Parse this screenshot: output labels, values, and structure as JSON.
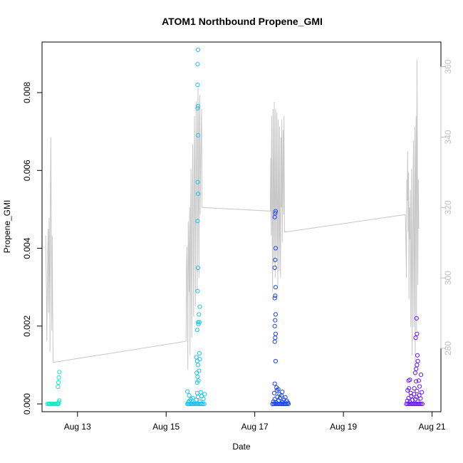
{
  "chart_data": {
    "type": "scatter",
    "title": "ATOM1 Northbound Propene_GMI",
    "xlabel": "Date",
    "ylabel": "Propene_GMI",
    "y2label": "",
    "x_range_days": [
      12.2,
      21.2
    ],
    "ylim": [
      -0.0002,
      0.0093
    ],
    "y2lim": [
      262,
      367
    ],
    "x_ticks": [
      {
        "value": 13,
        "label": "Aug 13"
      },
      {
        "value": 15,
        "label": "Aug 15"
      },
      {
        "value": 17,
        "label": "Aug 17"
      },
      {
        "value": 19,
        "label": "Aug 19"
      },
      {
        "value": 21,
        "label": "Aug 21"
      }
    ],
    "y_ticks": [
      {
        "value": 0.0,
        "label": "0.000"
      },
      {
        "value": 0.002,
        "label": "0.002"
      },
      {
        "value": 0.004,
        "label": "0.004"
      },
      {
        "value": 0.006,
        "label": "0.006"
      },
      {
        "value": 0.008,
        "label": "0.008"
      }
    ],
    "y2_ticks": [
      {
        "value": 280,
        "label": "280"
      },
      {
        "value": 300,
        "label": "300"
      },
      {
        "value": 320,
        "label": "320"
      },
      {
        "value": 340,
        "label": "340"
      },
      {
        "value": 360,
        "label": "360"
      }
    ],
    "line_color": "#c8c8c8",
    "scatter_series": [
      {
        "color": "#1ee8c8",
        "points": [
          [
            12.32,
            0.0
          ],
          [
            12.35,
            0.0
          ],
          [
            12.38,
            0.0
          ],
          [
            12.4,
            0.0
          ],
          [
            12.43,
            0.0
          ],
          [
            12.45,
            0.0
          ],
          [
            12.47,
            0.0
          ],
          [
            12.5,
            0.0
          ],
          [
            12.52,
            0.0
          ],
          [
            12.55,
            0.0
          ],
          [
            12.57,
            0.0
          ],
          [
            12.36,
            0.0
          ],
          [
            12.42,
            0.0
          ],
          [
            12.49,
            0.0
          ],
          [
            12.58,
            5e-05
          ],
          [
            12.59,
            9e-05
          ],
          [
            12.56,
            2e-05
          ],
          [
            12.56,
            0.00044
          ],
          [
            12.57,
            0.00055
          ],
          [
            12.58,
            0.00068
          ],
          [
            12.59,
            0.00082
          ]
        ]
      },
      {
        "color": "#22c2ea",
        "points": [
          [
            15.48,
            0.0
          ],
          [
            15.5,
            0.0
          ],
          [
            15.52,
            0.0
          ],
          [
            15.55,
            0.0
          ],
          [
            15.58,
            0.0
          ],
          [
            15.6,
            0.0
          ],
          [
            15.62,
            0.0
          ],
          [
            15.65,
            0.0
          ],
          [
            15.68,
            0.0
          ],
          [
            15.7,
            0.0
          ],
          [
            15.72,
            0.0
          ],
          [
            15.75,
            0.0
          ],
          [
            15.78,
            0.0
          ],
          [
            15.8,
            0.0
          ],
          [
            15.83,
            0.0
          ],
          [
            15.86,
            0.0
          ],
          [
            15.5,
            5e-05
          ],
          [
            15.53,
            8e-05
          ],
          [
            15.56,
            0.00012
          ],
          [
            15.6,
            0.00015
          ],
          [
            15.64,
            3e-05
          ],
          [
            15.68,
            0.0001
          ],
          [
            15.72,
            0.00018
          ],
          [
            15.76,
            6e-05
          ],
          [
            15.8,
            0.0002
          ],
          [
            15.84,
            0.00013
          ],
          [
            15.87,
            0.00025
          ],
          [
            15.78,
            0.0003
          ],
          [
            15.48,
            0.00032
          ],
          [
            15.52,
            0.00022
          ],
          [
            15.7,
            0.00028
          ],
          [
            15.68,
            0.0012
          ],
          [
            15.7,
            0.0011
          ],
          [
            15.72,
            0.001
          ],
          [
            15.69,
            0.0008
          ],
          [
            15.71,
            0.0007
          ],
          [
            15.73,
            0.0006
          ],
          [
            15.74,
            0.00085
          ],
          [
            15.75,
            0.0013
          ],
          [
            15.76,
            0.00115
          ],
          [
            15.7,
            0.00055
          ],
          [
            15.7,
            0.0019
          ],
          [
            15.72,
            0.0021
          ],
          [
            15.74,
            0.0023
          ],
          [
            15.76,
            0.0025
          ],
          [
            15.73,
            0.00205
          ],
          [
            15.75,
            0.0021
          ],
          [
            15.71,
            0.0029
          ],
          [
            15.72,
            0.0035
          ],
          [
            15.71,
            0.0047
          ],
          [
            15.72,
            0.0054
          ],
          [
            15.71,
            0.0057
          ],
          [
            15.72,
            0.0069
          ],
          [
            15.71,
            0.0076
          ],
          [
            15.72,
            0.00765
          ],
          [
            15.71,
            0.0082
          ],
          [
            15.71,
            0.00873
          ],
          [
            15.72,
            0.0091
          ]
        ]
      },
      {
        "color": "#1a46ee",
        "points": [
          [
            17.4,
            0.0
          ],
          [
            17.43,
            0.0
          ],
          [
            17.46,
            0.0
          ],
          [
            17.49,
            0.0
          ],
          [
            17.52,
            0.0
          ],
          [
            17.55,
            0.0
          ],
          [
            17.58,
            0.0
          ],
          [
            17.61,
            0.0
          ],
          [
            17.64,
            0.0
          ],
          [
            17.67,
            0.0
          ],
          [
            17.7,
            0.0
          ],
          [
            17.73,
            0.0
          ],
          [
            17.76,
            0.0
          ],
          [
            17.42,
            6e-05
          ],
          [
            17.45,
            0.00012
          ],
          [
            17.48,
            4e-05
          ],
          [
            17.51,
            0.00018
          ],
          [
            17.54,
            9e-05
          ],
          [
            17.57,
            0.00015
          ],
          [
            17.6,
            0.00022
          ],
          [
            17.63,
            5e-05
          ],
          [
            17.66,
            0.00011
          ],
          [
            17.69,
            0.00017
          ],
          [
            17.72,
            8e-05
          ],
          [
            17.75,
            3e-05
          ],
          [
            17.44,
            0.00028
          ],
          [
            17.5,
            0.00035
          ],
          [
            17.56,
            0.00025
          ],
          [
            17.62,
            0.00031
          ],
          [
            17.45,
            0.00052
          ],
          [
            17.49,
            0.00042
          ],
          [
            17.53,
            0.00038
          ],
          [
            17.47,
            0.0011
          ],
          [
            17.45,
            0.0016
          ],
          [
            17.46,
            0.0017
          ],
          [
            17.47,
            0.0018
          ],
          [
            17.45,
            0.002
          ],
          [
            17.46,
            0.00215
          ],
          [
            17.47,
            0.0023
          ],
          [
            17.45,
            0.00272
          ],
          [
            17.46,
            0.00278
          ],
          [
            17.47,
            0.003
          ],
          [
            17.45,
            0.0035
          ],
          [
            17.46,
            0.0037
          ],
          [
            17.47,
            0.004
          ],
          [
            17.45,
            0.0048
          ],
          [
            17.46,
            0.0049
          ],
          [
            17.47,
            0.00495
          ]
        ]
      },
      {
        "color": "#6a1ef0",
        "points": [
          [
            20.42,
            0.0
          ],
          [
            20.45,
            0.0
          ],
          [
            20.48,
            0.0
          ],
          [
            20.51,
            0.0
          ],
          [
            20.54,
            0.0
          ],
          [
            20.57,
            0.0
          ],
          [
            20.6,
            0.0
          ],
          [
            20.63,
            0.0
          ],
          [
            20.66,
            0.0
          ],
          [
            20.69,
            0.0
          ],
          [
            20.72,
            0.0
          ],
          [
            20.75,
            0.0
          ],
          [
            20.78,
            0.0
          ],
          [
            20.44,
            8e-05
          ],
          [
            20.47,
            0.00015
          ],
          [
            20.5,
            5e-05
          ],
          [
            20.53,
            0.0002
          ],
          [
            20.56,
            0.0001
          ],
          [
            20.59,
            0.00025
          ],
          [
            20.62,
            0.00012
          ],
          [
            20.65,
            0.00018
          ],
          [
            20.68,
            6e-05
          ],
          [
            20.71,
            0.00022
          ],
          [
            20.74,
            0.00014
          ],
          [
            20.77,
            0.0003
          ],
          [
            20.45,
            0.00035
          ],
          [
            20.52,
            0.00028
          ],
          [
            20.6,
            0.0004
          ],
          [
            20.66,
            0.00033
          ],
          [
            20.72,
            0.00045
          ],
          [
            20.47,
            0.0006
          ],
          [
            20.5,
            0.00062
          ],
          [
            20.48,
            0.0004
          ],
          [
            20.7,
            0.0006
          ],
          [
            20.75,
            0.00075
          ],
          [
            20.64,
            0.00058
          ],
          [
            20.62,
            0.0008
          ],
          [
            20.64,
            0.0009
          ],
          [
            20.66,
            0.001
          ],
          [
            20.68,
            0.0011
          ],
          [
            20.67,
            0.00125
          ],
          [
            20.63,
            0.0017
          ],
          [
            20.66,
            0.0018
          ],
          [
            20.65,
            0.0022
          ]
        ]
      }
    ],
    "line_series": {
      "name": "",
      "points": [
        [
          12.28,
          312
        ],
        [
          12.3,
          296
        ],
        [
          12.31,
          282
        ],
        [
          12.33,
          309
        ],
        [
          12.34,
          314
        ],
        [
          12.35,
          290
        ],
        [
          12.36,
          317
        ],
        [
          12.37,
          303
        ],
        [
          12.38,
          279
        ],
        [
          12.39,
          326
        ],
        [
          12.4,
          340
        ],
        [
          12.41,
          309
        ],
        [
          12.42,
          285
        ],
        [
          12.43,
          312
        ],
        [
          12.44,
          293
        ],
        [
          12.45,
          276
        ],
        [
          15.45,
          282
        ],
        [
          15.46,
          304
        ],
        [
          15.47,
          309
        ],
        [
          15.48,
          292
        ],
        [
          15.49,
          274
        ],
        [
          15.5,
          316
        ],
        [
          15.51,
          305
        ],
        [
          15.52,
          296
        ],
        [
          15.53,
          320
        ],
        [
          15.54,
          278
        ],
        [
          15.55,
          312
        ],
        [
          15.56,
          331
        ],
        [
          15.57,
          300
        ],
        [
          15.58,
          283
        ],
        [
          15.59,
          322
        ],
        [
          15.6,
          338
        ],
        [
          15.61,
          307
        ],
        [
          15.62,
          289
        ],
        [
          15.63,
          328
        ],
        [
          15.64,
          346
        ],
        [
          15.65,
          313
        ],
        [
          15.66,
          292
        ],
        [
          15.67,
          335
        ],
        [
          15.68,
          350
        ],
        [
          15.69,
          318
        ],
        [
          15.7,
          296
        ],
        [
          15.71,
          342
        ],
        [
          15.72,
          354
        ],
        [
          15.73,
          322
        ],
        [
          15.74,
          300
        ],
        [
          15.75,
          344
        ],
        [
          15.76,
          352
        ],
        [
          15.77,
          318
        ],
        [
          15.78,
          332
        ],
        [
          15.79,
          340
        ],
        [
          15.8,
          348
        ],
        [
          15.81,
          320
        ],
        [
          17.35,
          319
        ],
        [
          17.36,
          334
        ],
        [
          17.37,
          312
        ],
        [
          17.38,
          346
        ],
        [
          17.39,
          322
        ],
        [
          17.4,
          296
        ],
        [
          17.41,
          348
        ],
        [
          17.42,
          330
        ],
        [
          17.43,
          304
        ],
        [
          17.44,
          350
        ],
        [
          17.45,
          318
        ],
        [
          17.46,
          300
        ],
        [
          17.47,
          348
        ],
        [
          17.48,
          326
        ],
        [
          17.49,
          306
        ],
        [
          17.5,
          347
        ],
        [
          17.51,
          316
        ],
        [
          17.52,
          298
        ],
        [
          17.53,
          345
        ],
        [
          17.54,
          322
        ],
        [
          17.55,
          302
        ],
        [
          17.56,
          343
        ],
        [
          17.57,
          314
        ],
        [
          17.58,
          300
        ],
        [
          17.59,
          340
        ],
        [
          17.6,
          320
        ],
        [
          17.61,
          345
        ],
        [
          17.62,
          310
        ],
        [
          17.63,
          330
        ],
        [
          17.64,
          342
        ],
        [
          17.65,
          318
        ],
        [
          17.66,
          346
        ],
        [
          17.67,
          313
        ],
        [
          20.4,
          318
        ],
        [
          20.42,
          300
        ],
        [
          20.43,
          328
        ],
        [
          20.44,
          322
        ],
        [
          20.45,
          336
        ],
        [
          20.46,
          313
        ],
        [
          20.47,
          330
        ],
        [
          20.48,
          294
        ],
        [
          20.49,
          320
        ],
        [
          20.5,
          311
        ],
        [
          20.51,
          325
        ],
        [
          20.52,
          286
        ],
        [
          20.53,
          306
        ],
        [
          20.54,
          331
        ],
        [
          20.55,
          278
        ],
        [
          20.56,
          300
        ],
        [
          20.57,
          322
        ],
        [
          20.58,
          339
        ],
        [
          20.59,
          286
        ],
        [
          20.6,
          310
        ],
        [
          20.61,
          343
        ],
        [
          20.62,
          272
        ],
        [
          20.63,
          330
        ],
        [
          20.64,
          346
        ],
        [
          20.65,
          285
        ],
        [
          20.66,
          362
        ],
        [
          20.67,
          336
        ],
        [
          20.68,
          298
        ],
        [
          20.69,
          328
        ],
        [
          20.7,
          314
        ]
      ]
    }
  }
}
